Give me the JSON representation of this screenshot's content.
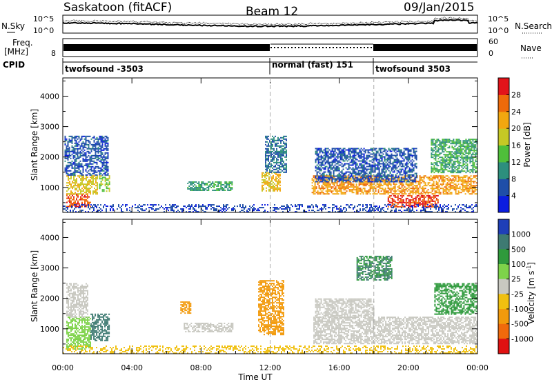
{
  "header": {
    "station": "Saskatoon (fitACF)",
    "beam": "Beam 12",
    "date": "09/Jan/2015"
  },
  "status_panel": {
    "nsky_label": "N.Sky",
    "nsky_ticks": [
      "10^5",
      "10^0"
    ],
    "nsearch_label": "N.Search",
    "nsearch_ticks": [
      "10^5",
      "10^0"
    ],
    "freq_label_line1": "Freq.",
    "freq_label_line2": "[MHz]",
    "freq_ticks": [
      "8"
    ],
    "nave_label": "Nave",
    "nave_ticks": [
      "60",
      "0"
    ],
    "cpid_label": "CPID",
    "cpid_segments": [
      {
        "label": "twofsound -3503",
        "start_hour": 0,
        "end_hour": 12
      },
      {
        "label": "normal (fast) 151",
        "start_hour": 12,
        "end_hour": 18
      },
      {
        "label": "twofsound 3503",
        "start_hour": 18,
        "end_hour": 24
      }
    ]
  },
  "chart_data": [
    {
      "type": "heatmap",
      "title": "",
      "xlabel": "",
      "ylabel": "Slant Range [km]",
      "xlim": [
        0,
        24
      ],
      "ylim": [
        180,
        4600
      ],
      "yticks": [
        1000,
        2000,
        3000,
        4000
      ],
      "colorbar": {
        "label": "Power [dB]",
        "ticks": [
          "4",
          "8",
          "12",
          "16",
          "20",
          "24",
          "28"
        ],
        "colors": [
          "#0b1de0",
          "#1f4ea8",
          "#2d8f7d",
          "#4fbf3a",
          "#c6c825",
          "#f2a70f",
          "#ee6a0a",
          "#e2131a"
        ]
      },
      "regions": [
        {
          "t0": 0.2,
          "t1": 1.6,
          "r0": 350,
          "r1": 800,
          "value": 27
        },
        {
          "t0": 0.2,
          "t1": 2.0,
          "r0": 800,
          "r1": 1400,
          "value": 19
        },
        {
          "t0": 0.1,
          "t1": 2.6,
          "r0": 1400,
          "r1": 2700,
          "value": 6
        },
        {
          "t0": 2.1,
          "t1": 2.7,
          "r0": 900,
          "r1": 1400,
          "value": 15
        },
        {
          "t0": 7.2,
          "t1": 9.8,
          "r0": 900,
          "r1": 1200,
          "value": 11
        },
        {
          "t0": 11.5,
          "t1": 12.6,
          "r0": 900,
          "r1": 1500,
          "value": 21
        },
        {
          "t0": 11.7,
          "t1": 12.9,
          "r0": 1500,
          "r1": 2700,
          "value": 8
        },
        {
          "t0": 14.4,
          "t1": 24.0,
          "r0": 800,
          "r1": 1400,
          "value": 23
        },
        {
          "t0": 14.6,
          "t1": 20.5,
          "r0": 1200,
          "r1": 2300,
          "value": 6
        },
        {
          "t0": 18.8,
          "t1": 21.7,
          "r0": 350,
          "r1": 750,
          "value": 28
        },
        {
          "t0": 21.3,
          "t1": 24.0,
          "r0": 1500,
          "r1": 2600,
          "value": 12
        },
        {
          "t0": 0.0,
          "t1": 24.0,
          "r0": 180,
          "r1": 450,
          "value": 5
        }
      ]
    },
    {
      "type": "heatmap",
      "title": "",
      "xlabel": "Time UT",
      "ylabel": "Slant Range [km]",
      "xlim": [
        0,
        24
      ],
      "ylim": [
        180,
        4600
      ],
      "yticks": [
        1000,
        2000,
        3000,
        4000
      ],
      "xticks": [
        "00:00",
        "04:00",
        "08:00",
        "12:00",
        "16:00",
        "20:00",
        "00:00"
      ],
      "colorbar": {
        "label": "Velocity [m s^-1]",
        "ticks": [
          "1000",
          "500",
          "100",
          "25",
          "-25",
          "-100",
          "-500",
          "-1000"
        ],
        "colors": [
          "#1f3fb8",
          "#3e7a72",
          "#2f9a3c",
          "#7ed34a",
          "#c8c8c0",
          "#f0c010",
          "#f29a0c",
          "#f06a0c",
          "#e01212"
        ]
      },
      "regions": [
        {
          "t0": 0.2,
          "t1": 1.6,
          "r0": 350,
          "r1": 1400,
          "value": 40
        },
        {
          "t0": 0.2,
          "t1": 1.4,
          "r0": 1400,
          "r1": 2500,
          "value": 0
        },
        {
          "t0": 1.6,
          "t1": 2.7,
          "r0": 600,
          "r1": 1500,
          "value": 700
        },
        {
          "t0": 7.0,
          "t1": 9.8,
          "r0": 900,
          "r1": 1200,
          "value": 0
        },
        {
          "t0": 6.8,
          "t1": 7.4,
          "r0": 1500,
          "r1": 1900,
          "value": -300
        },
        {
          "t0": 11.3,
          "t1": 12.8,
          "r0": 800,
          "r1": 2600,
          "value": -300
        },
        {
          "t0": 14.5,
          "t1": 24.0,
          "r0": 500,
          "r1": 1400,
          "value": 0
        },
        {
          "t0": 14.6,
          "t1": 18.0,
          "r0": 1400,
          "r1": 2000,
          "value": 0
        },
        {
          "t0": 21.5,
          "t1": 24.0,
          "r0": 1500,
          "r1": 2500,
          "value": 200
        },
        {
          "t0": 17.0,
          "t1": 19.0,
          "r0": 2600,
          "r1": 3400,
          "value": 500
        },
        {
          "t0": 0.0,
          "t1": 24.0,
          "r0": 180,
          "r1": 450,
          "value": -50
        }
      ]
    }
  ]
}
